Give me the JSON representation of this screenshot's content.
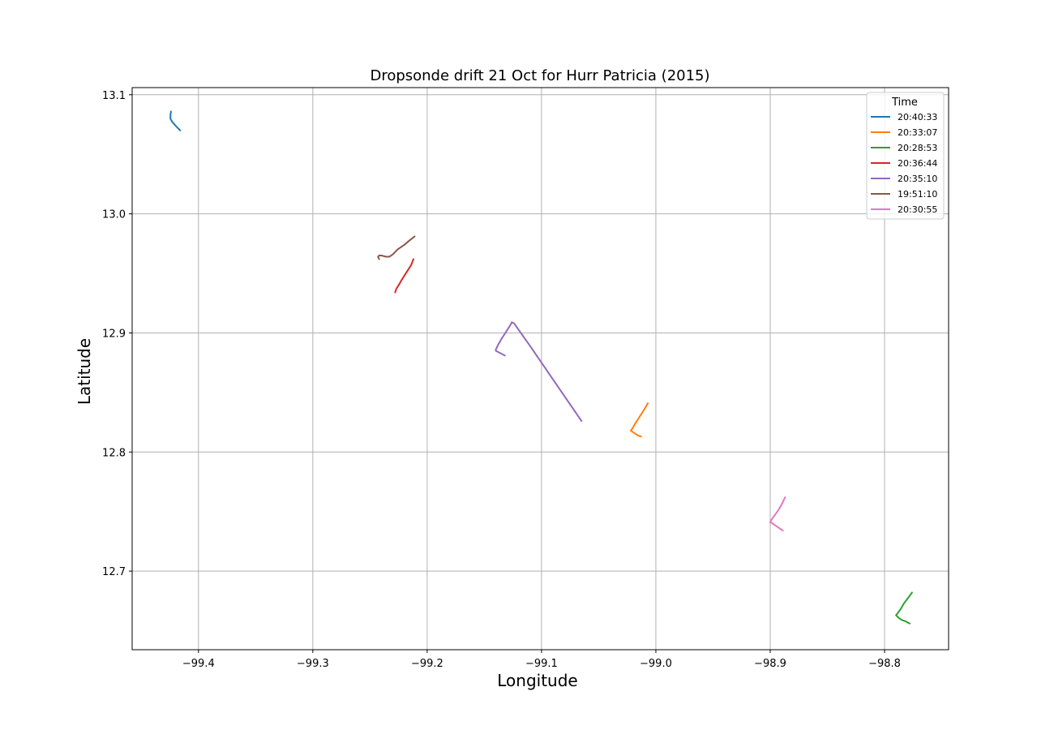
{
  "chart_data": {
    "type": "line",
    "title": "Dropsonde drift 21 Oct for Hurr Patricia (2015)",
    "xlabel": "Longitude",
    "ylabel": "Latitude",
    "xlim": [
      -99.458,
      -98.744
    ],
    "ylim": [
      12.634,
      13.106
    ],
    "xticks": [
      -99.4,
      -99.3,
      -99.2,
      -99.1,
      -99.0,
      -98.9,
      -98.8
    ],
    "xtick_labels": [
      "−99.4",
      "−99.3",
      "−99.2",
      "−99.1",
      "−99.0",
      "−98.9",
      "−98.8"
    ],
    "yticks": [
      12.7,
      12.8,
      12.9,
      13.0,
      13.1
    ],
    "ytick_labels": [
      "12.7",
      "12.8",
      "12.9",
      "13.0",
      "13.1"
    ],
    "grid": true,
    "legend": {
      "title": "Time",
      "placement": "top-right"
    },
    "series": [
      {
        "name": "20:40:33",
        "color": "#1f77b4",
        "x": [
          -99.424,
          -99.4245,
          -99.4245,
          -99.4235,
          -99.421,
          -99.418,
          -99.416
        ],
        "y": [
          13.086,
          13.083,
          13.08,
          13.078,
          13.075,
          13.072,
          13.07
        ]
      },
      {
        "name": "20:33:07",
        "color": "#ff7f0e",
        "x": [
          -99.007,
          -99.01,
          -99.014,
          -99.018,
          -99.021,
          -99.022,
          -99.019,
          -99.016,
          -99.013
        ],
        "y": [
          12.841,
          12.836,
          12.83,
          12.824,
          12.819,
          12.818,
          12.816,
          12.814,
          12.813
        ]
      },
      {
        "name": "20:28:53",
        "color": "#2ca02c",
        "x": [
          -98.776,
          -98.779,
          -98.783,
          -98.786,
          -98.789,
          -98.79,
          -98.788,
          -98.785,
          -98.782,
          -98.778
        ],
        "y": [
          12.682,
          12.678,
          12.673,
          12.668,
          12.664,
          12.663,
          12.661,
          12.659,
          12.658,
          12.656
        ]
      },
      {
        "name": "20:36:44",
        "color": "#d62728",
        "x": [
          -99.212,
          -99.214,
          -99.218,
          -99.222,
          -99.225,
          -99.227,
          -99.228
        ],
        "y": [
          12.962,
          12.957,
          12.951,
          12.945,
          12.94,
          12.937,
          12.934
        ]
      },
      {
        "name": "20:35:10",
        "color": "#9467bd",
        "x": [
          -99.065,
          -99.08,
          -99.095,
          -99.11,
          -99.124,
          -99.126,
          -99.127,
          -99.131,
          -99.135,
          -99.138,
          -99.14,
          -99.14,
          -99.136,
          -99.132
        ],
        "y": [
          12.826,
          12.847,
          12.868,
          12.889,
          12.908,
          12.909,
          12.907,
          12.901,
          12.895,
          12.89,
          12.886,
          12.885,
          12.883,
          12.881
        ]
      },
      {
        "name": "19:51:10",
        "color": "#8c564b",
        "x": [
          -99.211,
          -99.215,
          -99.22,
          -99.226,
          -99.23,
          -99.233,
          -99.236,
          -99.24,
          -99.242,
          -99.243,
          -99.242
        ],
        "y": [
          12.981,
          12.978,
          12.974,
          12.97,
          12.966,
          12.964,
          12.964,
          12.965,
          12.965,
          12.964,
          12.962
        ]
      },
      {
        "name": "20:30:55",
        "color": "#e377c2",
        "x": [
          -98.887,
          -98.89,
          -98.893,
          -98.896,
          -98.899,
          -98.9,
          -98.898,
          -98.895,
          -98.892,
          -98.889
        ],
        "y": [
          12.762,
          12.756,
          12.751,
          12.747,
          12.743,
          12.741,
          12.74,
          12.738,
          12.736,
          12.734
        ]
      }
    ]
  }
}
